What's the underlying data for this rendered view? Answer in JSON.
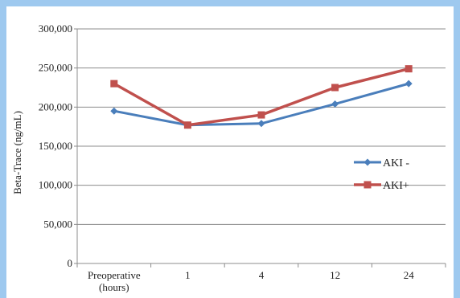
{
  "chart_data": {
    "type": "line",
    "categories": [
      "Preoperative\n(hours)",
      "1",
      "4",
      "12",
      "24"
    ],
    "series": [
      {
        "name": "AKI -",
        "color": "#4a7ebb",
        "marker": "diamond",
        "values": [
          195000,
          177000,
          179000,
          204000,
          230000
        ]
      },
      {
        "name": "AKI+",
        "color": "#c0504d",
        "marker": "square",
        "values": [
          230000,
          177000,
          190000,
          225000,
          249000
        ]
      }
    ],
    "ylabel": "Beta-Trace (ng/mL)",
    "ylim": [
      0,
      300000
    ],
    "yticks": [
      0,
      50000,
      100000,
      150000,
      200000,
      250000,
      300000
    ],
    "ytick_labels": [
      "0",
      "50,000",
      "100,000",
      "150,000",
      "200,000",
      "250,000",
      "300,000"
    ],
    "grid": true,
    "legend": "right"
  }
}
